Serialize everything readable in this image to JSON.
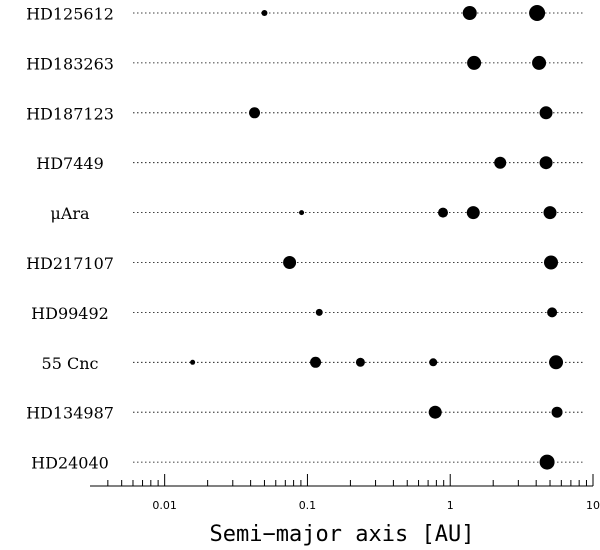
{
  "chart_data": {
    "type": "dot-plot",
    "x_label": "Semi−major axis [AU]",
    "xscale": "log",
    "xlim": [
      0.003,
      10
    ],
    "xticks": [
      0.01,
      0.1,
      1,
      10
    ],
    "minor_xticks": [
      0.004,
      0.005,
      0.006,
      0.007,
      0.008,
      0.009,
      0.02,
      0.03,
      0.04,
      0.05,
      0.06,
      0.07,
      0.08,
      0.09,
      0.2,
      0.3,
      0.4,
      0.5,
      0.6,
      0.7,
      0.8,
      0.9,
      2,
      3,
      4,
      5,
      6,
      7,
      8,
      9
    ],
    "color": "#000000",
    "categories": [
      "HD125612",
      "HD183263",
      "HD187123",
      "HD7449",
      "μAra",
      "HD217107",
      "HD99492",
      "55 Cnc",
      "HD134987",
      "HD24040"
    ],
    "planets": [
      {
        "x": [
          0.05,
          1.37,
          4.06
        ],
        "size": [
          3,
          7,
          8
        ]
      },
      {
        "x": [
          1.47,
          4.19
        ],
        "size": [
          7,
          7
        ]
      },
      {
        "x": [
          0.0426,
          4.69
        ],
        "size": [
          5.5,
          6.5
        ]
      },
      {
        "x": [
          2.24,
          4.69
        ],
        "size": [
          6,
          6.5
        ]
      },
      {
        "x": [
          0.091,
          0.89,
          1.45,
          5.0
        ],
        "size": [
          2.5,
          5,
          6.5,
          6.5
        ]
      },
      {
        "x": [
          0.075,
          5.08
        ],
        "size": [
          6.5,
          7
        ]
      },
      {
        "x": [
          0.121,
          5.17
        ],
        "size": [
          3.5,
          5
        ]
      },
      {
        "x": [
          0.0157,
          0.114,
          0.235,
          0.76,
          5.51
        ],
        "size": [
          2.5,
          5.5,
          4.5,
          4,
          7
        ]
      },
      {
        "x": [
          0.785,
          5.6
        ],
        "size": [
          6.5,
          5.5
        ]
      },
      {
        "x": [
          4.77
        ],
        "size": [
          7.5
        ]
      }
    ]
  }
}
